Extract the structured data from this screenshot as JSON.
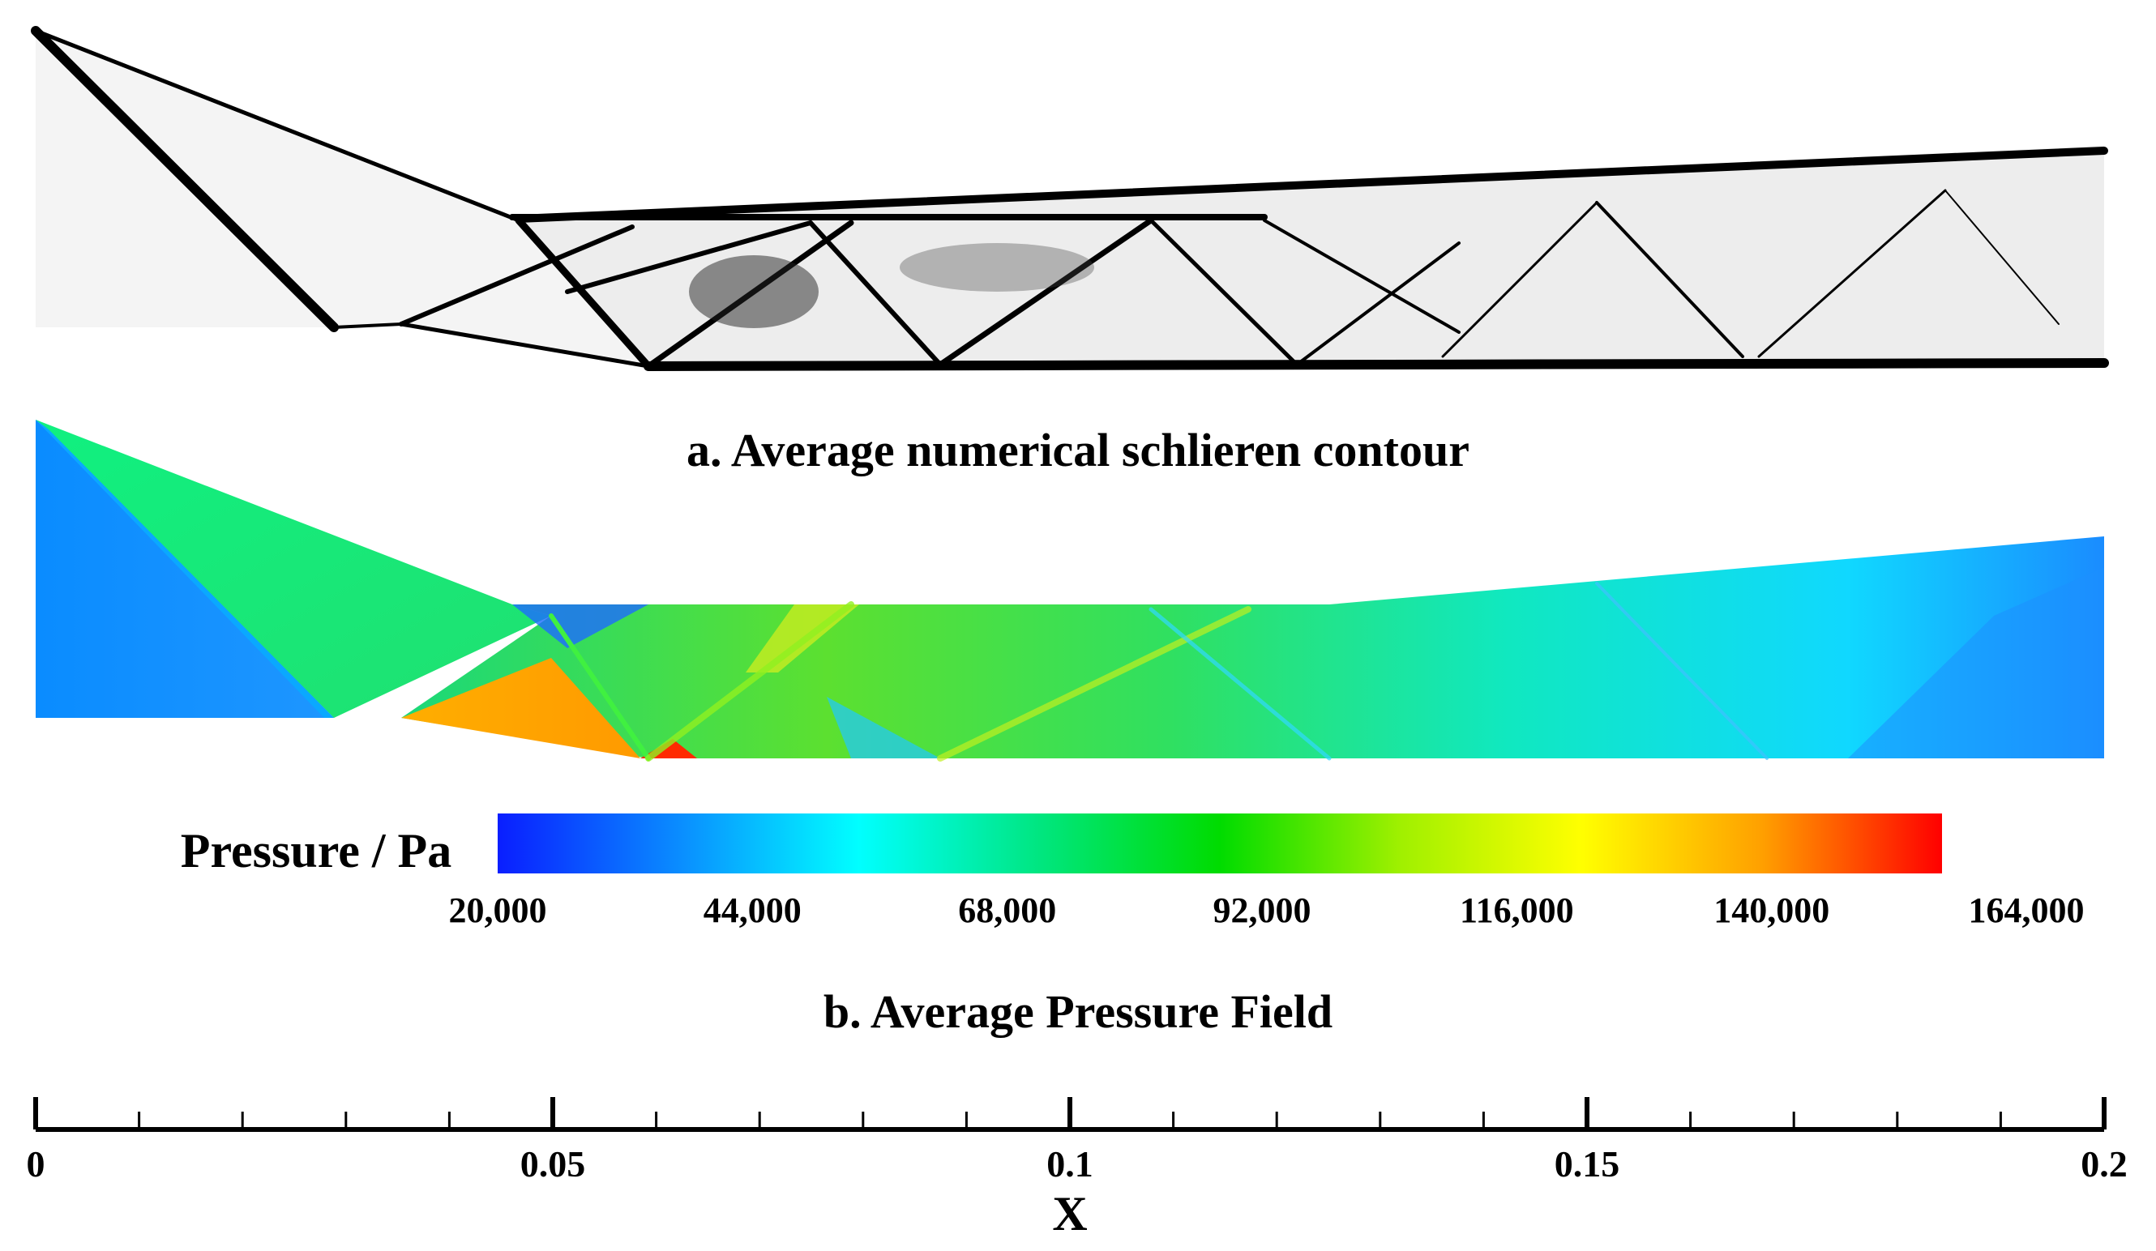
{
  "panel_a": {
    "caption": "a. Average numerical schlieren contour"
  },
  "panel_b": {
    "caption": "b. Average Pressure Field",
    "colorbar": {
      "label": "Pressure / Pa",
      "min": 20000,
      "max": 164000,
      "ticks": [
        "20,000",
        "44,000",
        "68,000",
        "92,000",
        "116,000",
        "140,000",
        "164,000"
      ],
      "colormap": [
        "#0a1eff",
        "#0a8cff",
        "#00ffff",
        "#00e680",
        "#00dc00",
        "#a0f000",
        "#ffff00",
        "#ffa000",
        "#ff0000"
      ]
    }
  },
  "x_axis": {
    "label": "X",
    "min": 0,
    "max": 0.2,
    "major_ticks": [
      0,
      0.05,
      0.1,
      0.15,
      0.2
    ],
    "tick_labels": [
      "0",
      "0.05",
      "0.1",
      "0.15",
      "0.2"
    ],
    "minor_step": 0.01
  },
  "chart_data": {
    "type": "heatmap",
    "title": "b. Average Pressure Field",
    "xlabel": "X",
    "ylabel": "",
    "xlim": [
      0,
      0.2
    ],
    "colorbar_label": "Pressure / Pa",
    "colorbar_range": [
      20000,
      164000
    ],
    "colorbar_ticks": [
      20000,
      44000,
      68000,
      92000,
      116000,
      140000,
      164000
    ]
  }
}
